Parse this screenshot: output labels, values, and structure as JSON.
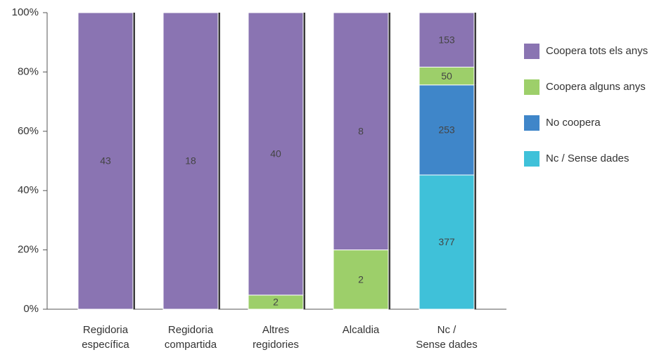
{
  "chart_data": {
    "type": "bar",
    "stacked": "percent",
    "categories": [
      [
        "Regidoria",
        "específica"
      ],
      [
        "Regidoria",
        "compartida"
      ],
      [
        "Altres",
        "regidories"
      ],
      [
        "Alcaldia"
      ],
      [
        "Nc /",
        "Sense dades"
      ]
    ],
    "series": [
      {
        "name": "Nc / Sense dades",
        "color": "#3fc1d9",
        "values": [
          null,
          null,
          null,
          null,
          377
        ]
      },
      {
        "name": "No coopera",
        "color": "#3f86c9",
        "values": [
          null,
          null,
          null,
          null,
          253
        ]
      },
      {
        "name": "Coopera alguns anys",
        "color": "#9dcf6a",
        "values": [
          null,
          null,
          2,
          2,
          50
        ]
      },
      {
        "name": "Coopera tots els anys",
        "color": "#8a74b2",
        "values": [
          43,
          18,
          40,
          8,
          153
        ]
      }
    ],
    "ylim": [
      0,
      100
    ],
    "yticks": [
      {
        "value": 0,
        "label": "0%"
      },
      {
        "value": 20,
        "label": "20%"
      },
      {
        "value": 40,
        "label": "40%"
      },
      {
        "value": 60,
        "label": "60%"
      },
      {
        "value": 80,
        "label": "80%"
      },
      {
        "value": 100,
        "label": "100%"
      }
    ],
    "grid": false,
    "legend": "right"
  }
}
